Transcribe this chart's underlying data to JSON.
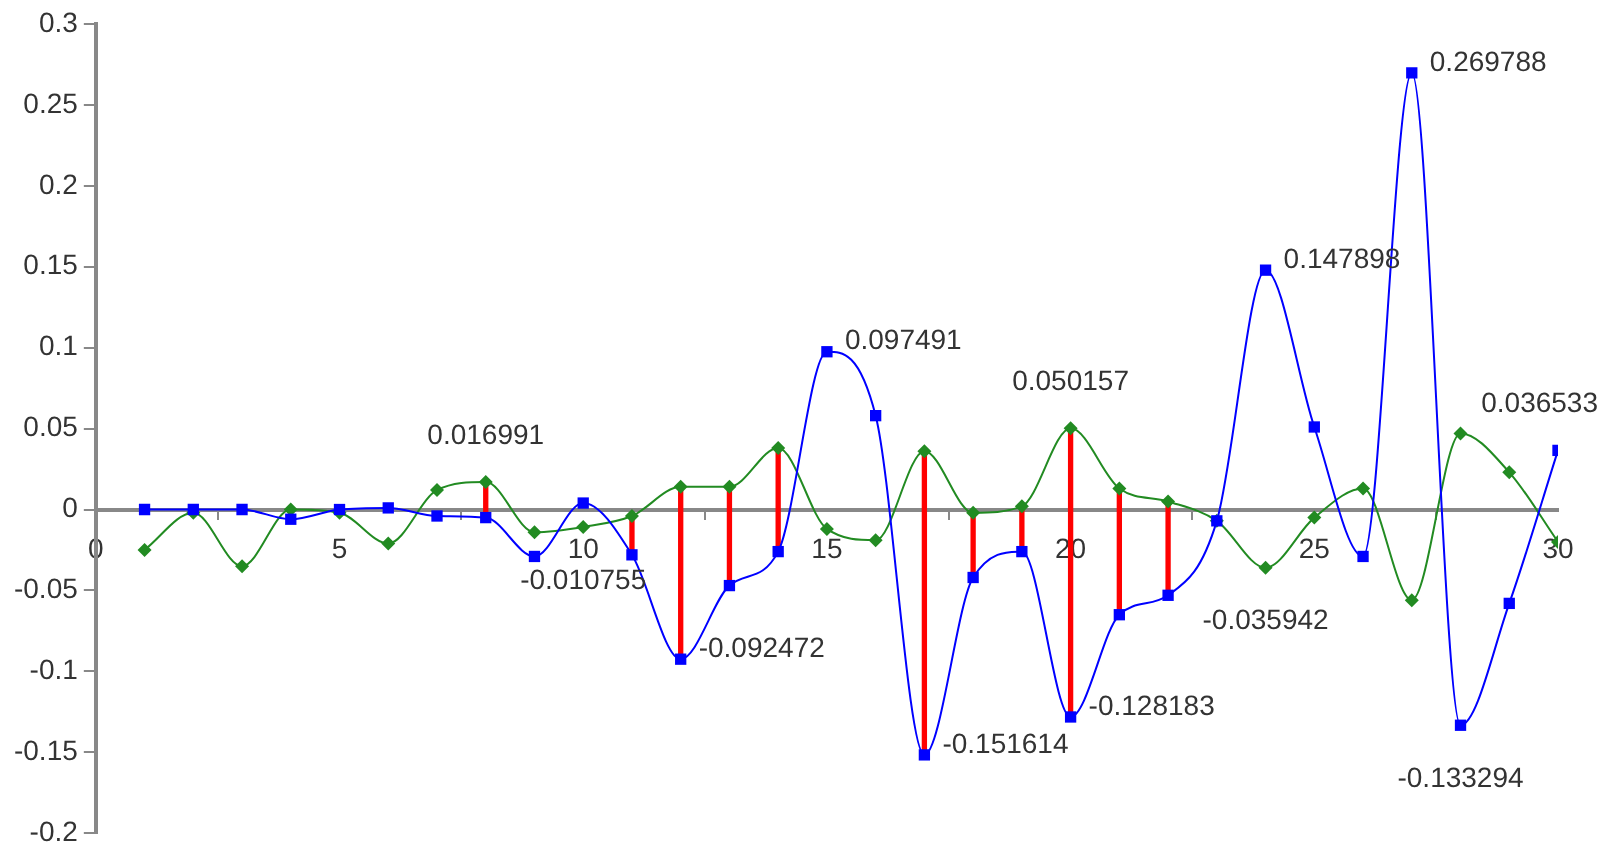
{
  "chart_data": {
    "type": "line",
    "x": [
      1,
      2,
      3,
      4,
      5,
      6,
      7,
      8,
      9,
      10,
      11,
      12,
      13,
      14,
      15,
      16,
      17,
      18,
      19,
      20,
      21,
      22,
      23,
      24,
      25,
      26,
      27,
      28,
      29,
      30
    ],
    "series": [
      {
        "type": "bar",
        "color": "#ff0000",
        "x": [
          8,
          11,
          12,
          13,
          14,
          17,
          18,
          19,
          20,
          21,
          22
        ],
        "base": [
          -0.005,
          -0.028,
          -0.092472,
          -0.047,
          -0.026,
          -0.151614,
          -0.042,
          -0.026,
          -0.128183,
          -0.065,
          -0.053
        ],
        "values": [
          0.022,
          0.024,
          0.106,
          0.061,
          0.064,
          0.188,
          0.04,
          0.028,
          0.178,
          0.078,
          0.058
        ]
      },
      {
        "color": "#0000ff",
        "marker": "square",
        "values": [
          0,
          0,
          0,
          -0.006,
          0,
          0.001,
          -0.004,
          -0.005,
          -0.029,
          0.004,
          -0.028,
          -0.092472,
          -0.047,
          -0.026,
          0.097491,
          0.058,
          -0.151614,
          -0.042,
          -0.026,
          -0.128183,
          -0.065,
          -0.053,
          -0.007,
          0.147898,
          0.051,
          -0.029,
          0.269788,
          -0.133294,
          -0.058,
          0.036533
        ],
        "value_labels": [
          null,
          null,
          null,
          null,
          null,
          null,
          null,
          null,
          null,
          null,
          null,
          "-0.092472",
          null,
          null,
          "0.097491",
          null,
          "-0.151614",
          null,
          null,
          "-0.128183",
          null,
          null,
          null,
          "0.147898",
          null,
          null,
          "0.269788",
          "-0.133294",
          null,
          "0.036533"
        ]
      },
      {
        "color": "#228b22",
        "marker": "diamond",
        "values": [
          -0.025,
          -0.002,
          -0.035,
          0,
          -0.002,
          -0.021,
          0.012,
          0.016991,
          -0.014,
          -0.010755,
          -0.004,
          0.014,
          0.014,
          0.038,
          -0.012,
          -0.019,
          0.036,
          -0.002,
          0.002,
          0.050157,
          0.013,
          0.005,
          -0.007,
          -0.035942,
          -0.005,
          0.013,
          -0.056,
          0.047,
          0.023,
          -0.02
        ],
        "value_labels": [
          null,
          null,
          null,
          null,
          null,
          null,
          null,
          "0.016991",
          null,
          "-0.010755",
          null,
          null,
          null,
          null,
          null,
          null,
          null,
          null,
          null,
          "0.050157",
          null,
          null,
          null,
          "-0.035942",
          null,
          null,
          null,
          null,
          null,
          null
        ]
      }
    ],
    "xlim": [
      0,
      30
    ],
    "xticks": [
      0,
      5,
      10,
      15,
      20,
      25,
      30
    ],
    "ylim": [
      -0.2,
      0.3
    ],
    "yticks": [
      -0.2,
      -0.15,
      -0.1,
      -0.05,
      0,
      0.05,
      0.1,
      0.15,
      0.2,
      0.25,
      0.3
    ],
    "grid": false,
    "legend": false
  }
}
